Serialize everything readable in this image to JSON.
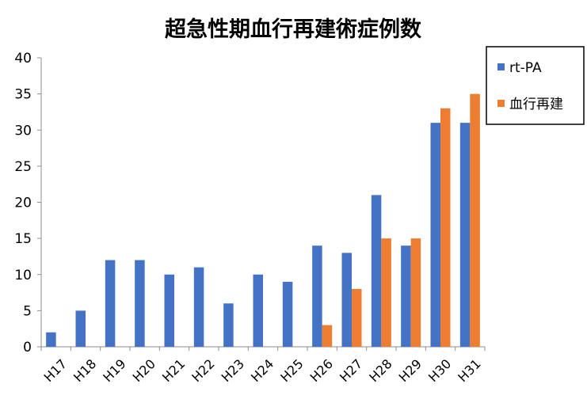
{
  "chart_data": {
    "type": "bar",
    "title": "超急性期血行再建術症例数",
    "xlabel": "",
    "ylabel": "",
    "categories": [
      "H17",
      "H18",
      "H19",
      "H20",
      "H21",
      "H22",
      "H23",
      "H24",
      "H25",
      "H26",
      "H27",
      "H28",
      "H29",
      "H30",
      "H31"
    ],
    "series": [
      {
        "name": "rt-PA",
        "color": "#4472C4",
        "values": [
          2,
          5,
          12,
          12,
          10,
          11,
          6,
          10,
          9,
          14,
          13,
          21,
          14,
          31,
          31
        ]
      },
      {
        "name": "血行再建",
        "color": "#ED7D31",
        "values": [
          0,
          0,
          0,
          0,
          0,
          0,
          0,
          0,
          0,
          3,
          8,
          15,
          15,
          33,
          35
        ]
      }
    ],
    "ylim": [
      0,
      40
    ],
    "yticks": [
      0,
      5,
      10,
      15,
      20,
      25,
      30,
      35,
      40
    ],
    "grid": false,
    "legend_position": "right"
  }
}
